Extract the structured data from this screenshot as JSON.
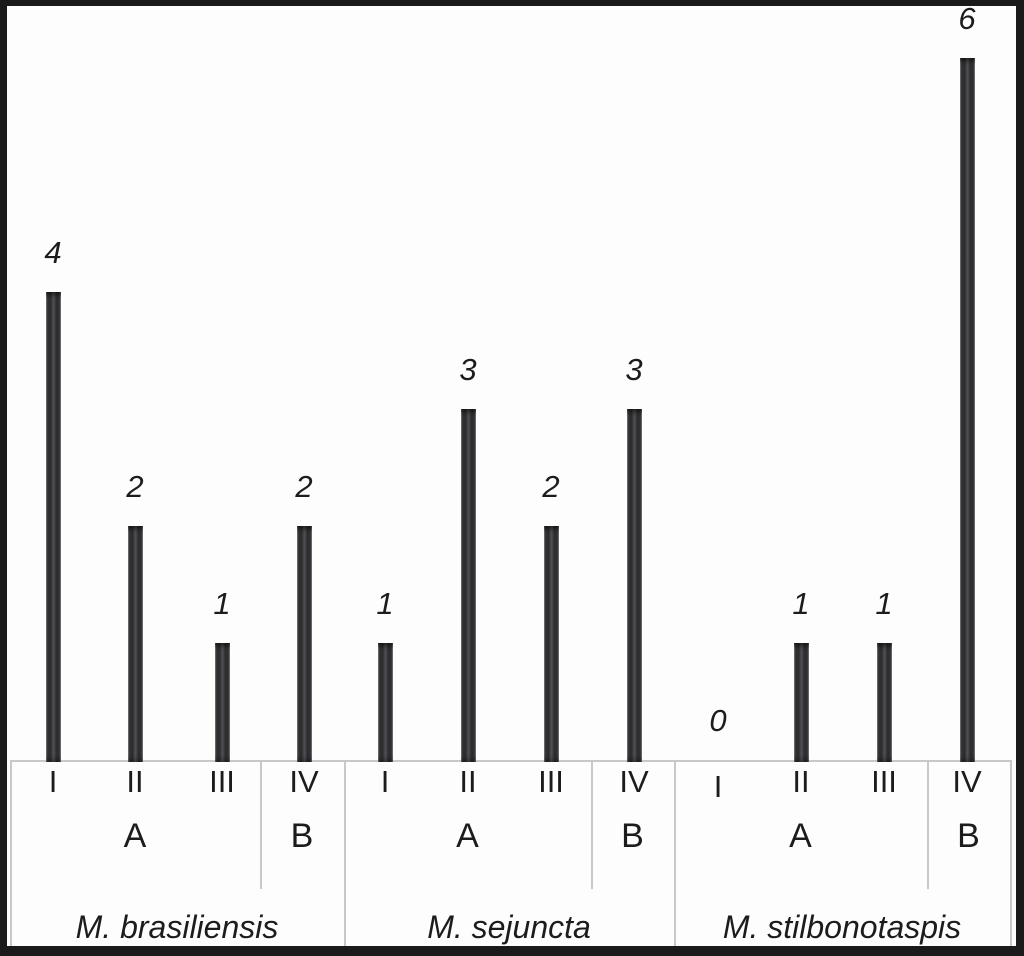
{
  "figure": {
    "background_color": "#fdfdfd",
    "frame_color": "#1a1a1a",
    "box_line_color": "#c8c8c8",
    "text_color": "#1c1c1c",
    "bar_color": "#3a3a3c"
  },
  "chart_data": {
    "type": "bar",
    "title": "",
    "xlabel": "",
    "ylabel": "",
    "ylim": [
      0,
      6
    ],
    "grid": false,
    "legend_position": "none",
    "bar_orientation": "vertical",
    "value_labels_shown": true,
    "value_label_style": "italic",
    "groups": [
      {
        "species": "M. brasiliensis",
        "categories": [
          "I",
          "II",
          "III",
          "IV"
        ],
        "values": [
          4,
          2,
          1,
          2
        ],
        "value_labels": [
          "4",
          "2",
          "1",
          "2"
        ],
        "sections": [
          {
            "label": "A",
            "span": [
              "I",
              "II",
              "III"
            ]
          },
          {
            "label": "B",
            "span": [
              "IV"
            ]
          }
        ]
      },
      {
        "species": "M. sejuncta",
        "categories": [
          "I",
          "II",
          "III",
          "IV"
        ],
        "values": [
          1,
          3,
          2,
          3
        ],
        "value_labels": [
          "1",
          "3",
          "2",
          "3"
        ],
        "sections": [
          {
            "label": "A",
            "span": [
              "I",
              "II",
              "III"
            ]
          },
          {
            "label": "B",
            "span": [
              "IV"
            ]
          }
        ]
      },
      {
        "species": "M. stilbonotaspis",
        "categories": [
          "I",
          "II",
          "III",
          "IV"
        ],
        "values": [
          0,
          1,
          1,
          6
        ],
        "value_labels": [
          "0",
          "1",
          "1",
          "6"
        ],
        "sections": [
          {
            "label": "A",
            "span": [
              "I",
              "II",
              "III"
            ]
          },
          {
            "label": "B",
            "span": [
              "IV"
            ]
          }
        ]
      }
    ]
  }
}
